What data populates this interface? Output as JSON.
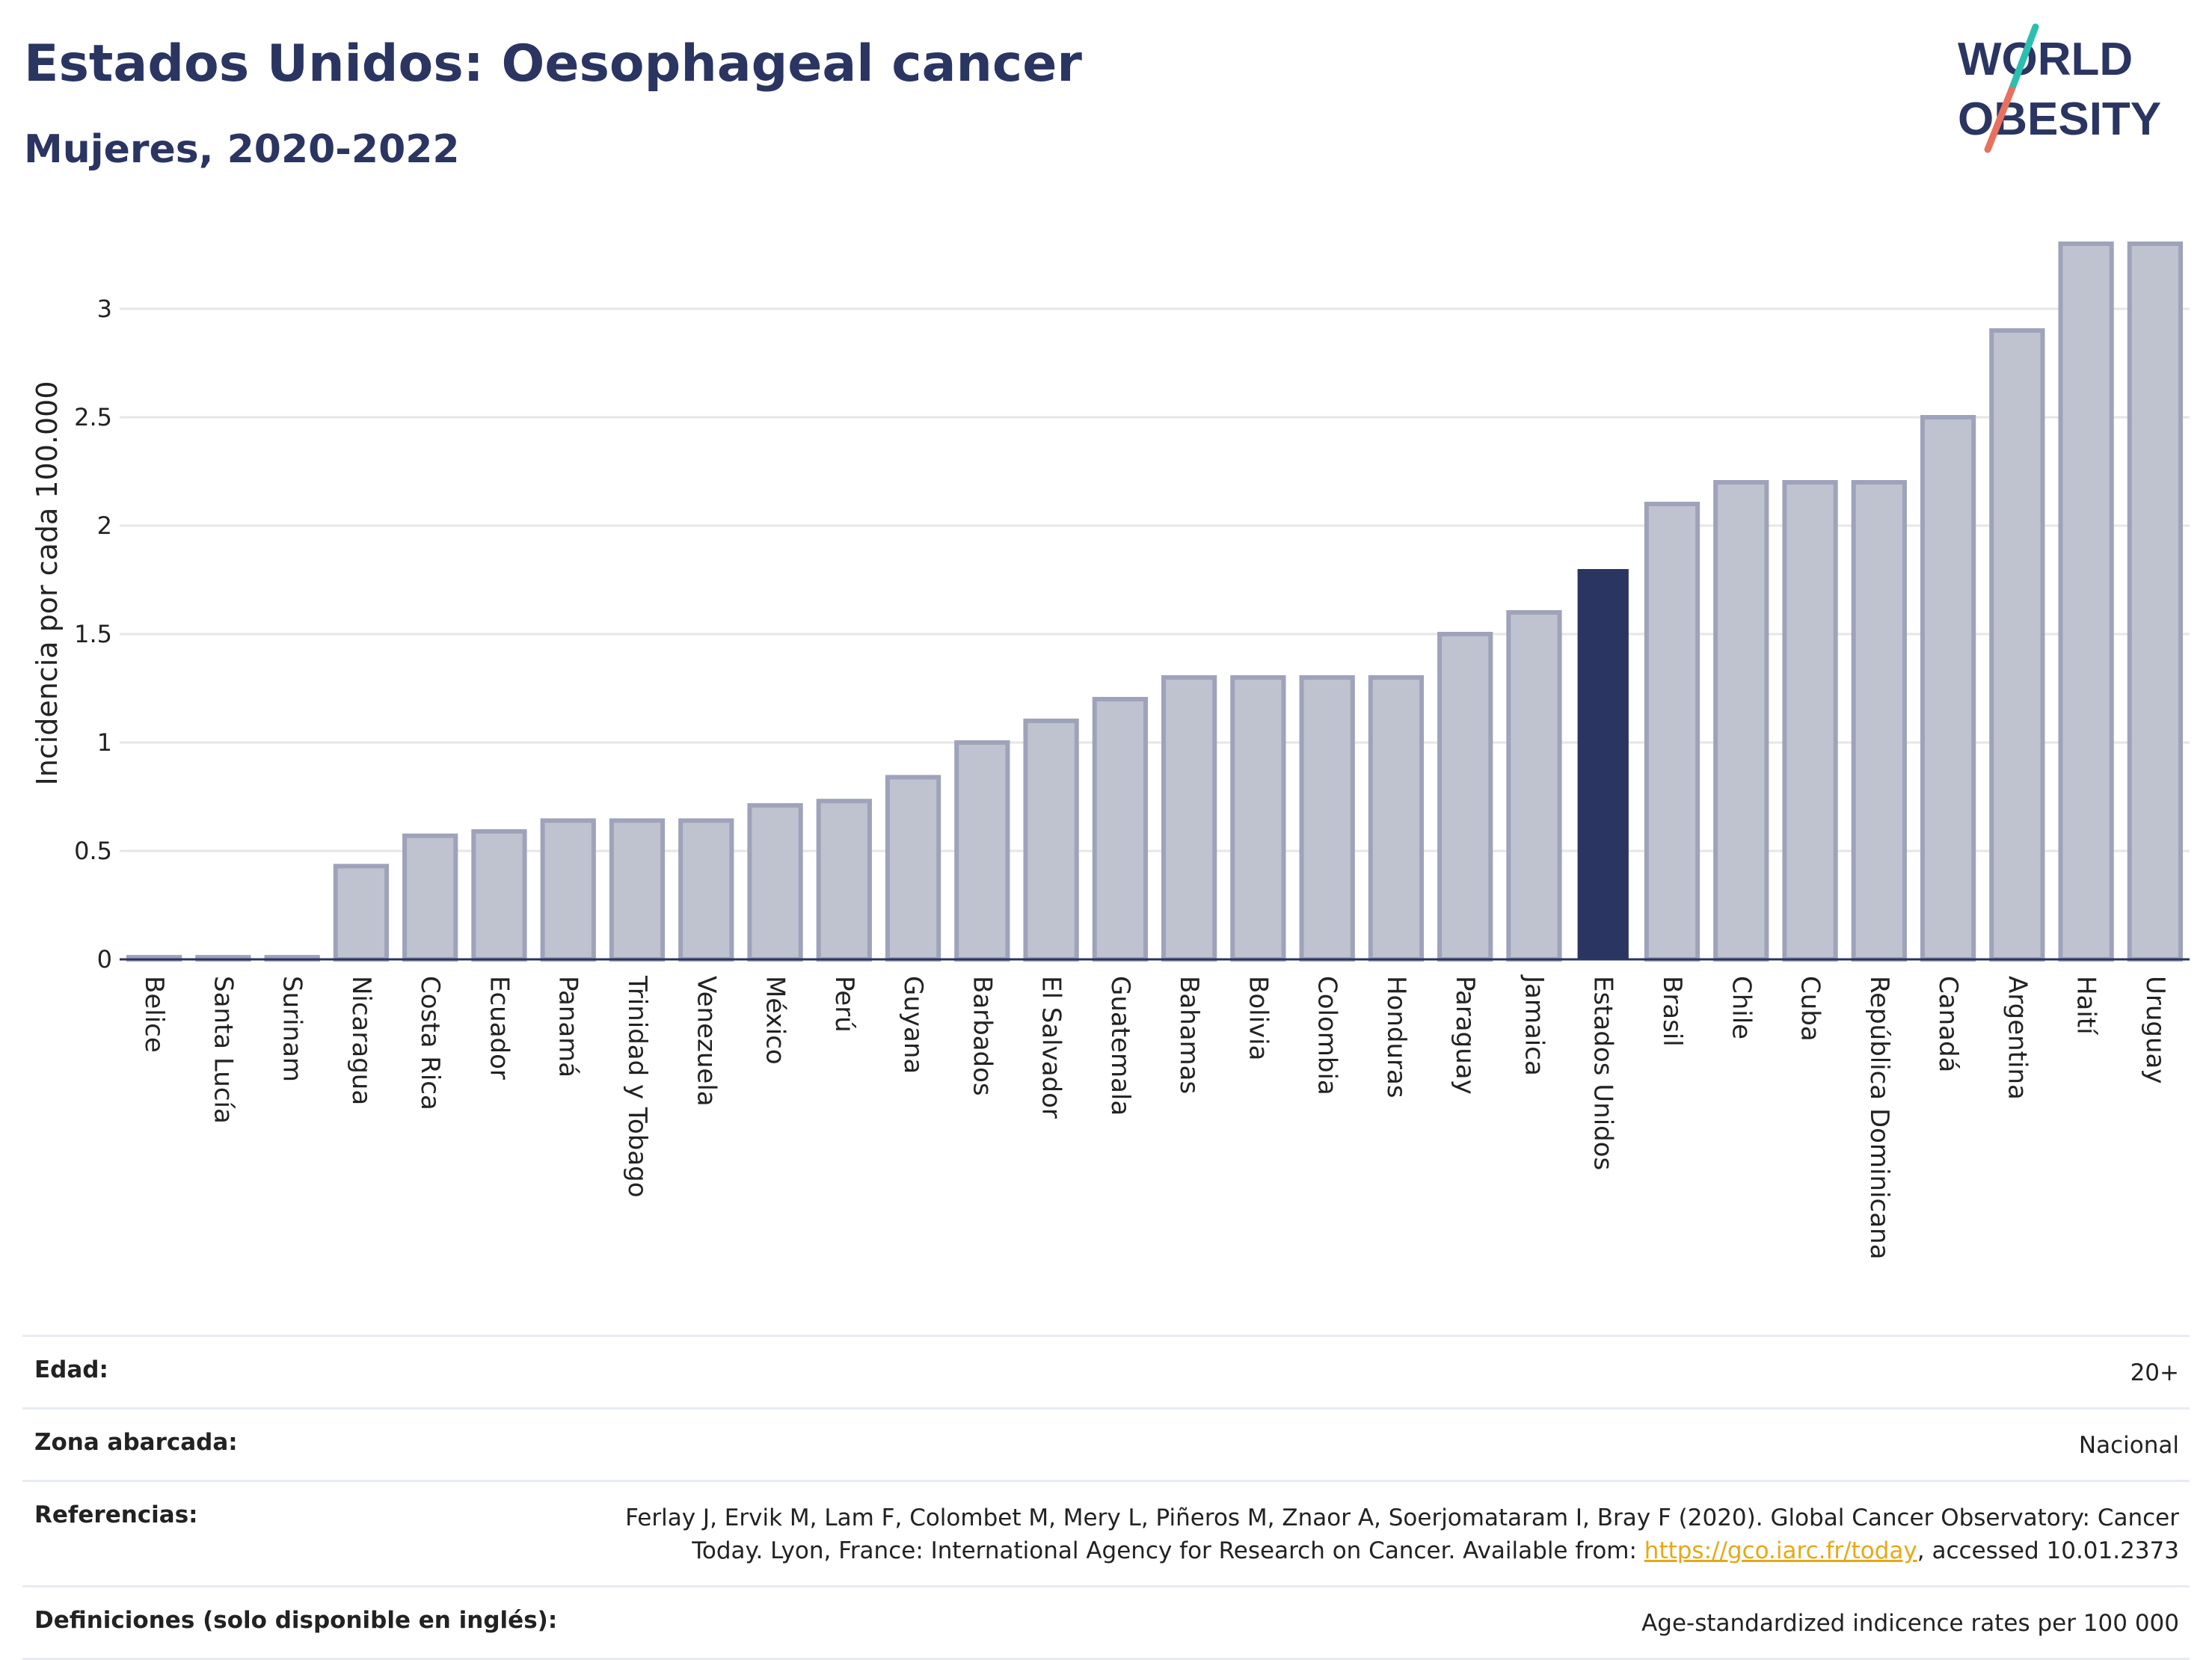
{
  "header": {
    "title": "Estados Unidos: Oesophageal cancer",
    "subtitle": "Mujeres, 2020-2022"
  },
  "logo": {
    "line1": "WORLD",
    "line2": "OBESITY"
  },
  "colors": {
    "highlight_bar": "#2a3561",
    "other_bar_fill": "#bfc2cf",
    "other_bar_stroke": "#9ea3ba",
    "grid": "#e6e6e6",
    "logo_slash_top": "#2bbfae",
    "logo_slash_bottom": "#e8705e"
  },
  "chart_data": {
    "type": "bar",
    "title": "Estados Unidos: Oesophageal cancer",
    "subtitle": "Mujeres, 2020-2022",
    "xlabel": "",
    "ylabel": "Incidencia por cada 100.000",
    "ylim": [
      0,
      3.3
    ],
    "yticks": [
      0,
      0.5,
      1,
      1.5,
      2,
      2.5,
      3
    ],
    "grid": true,
    "highlight": "Estados Unidos",
    "categories": [
      "Belice",
      "Santa Lucía",
      "Surinam",
      "Nicaragua",
      "Costa Rica",
      "Ecuador",
      "Panamá",
      "Trinidad y Tobago",
      "Venezuela",
      "México",
      "Perú",
      "Guyana",
      "Barbados",
      "El Salvador",
      "Guatemala",
      "Bahamas",
      "Bolivia",
      "Colombia",
      "Honduras",
      "Paraguay",
      "Jamaica",
      "Estados Unidos",
      "Brasil",
      "Chile",
      "Cuba",
      "República Dominicana",
      "Canadá",
      "Argentina",
      "Haití",
      "Uruguay"
    ],
    "values": [
      0.01,
      0.01,
      0.01,
      0.43,
      0.57,
      0.59,
      0.64,
      0.64,
      0.64,
      0.71,
      0.73,
      0.84,
      1.0,
      1.1,
      1.2,
      1.3,
      1.3,
      1.3,
      1.3,
      1.5,
      1.6,
      1.8,
      2.1,
      2.2,
      2.2,
      2.2,
      2.5,
      2.9,
      3.3,
      3.3
    ]
  },
  "info": {
    "rows": [
      {
        "label": "Edad:",
        "value": "20+"
      },
      {
        "label": "Zona abarcada:",
        "value": "Nacional"
      },
      {
        "label": "Referencias:",
        "value_line1": "Ferlay J, Ervik M, Lam F, Colombet M, Mery L, Piñeros M, Znaor A, Soerjomataram I, Bray F (2020). Global Cancer Observatory: Cancer",
        "value_line2_pre": "Today. Lyon, France: International Agency for Research on Cancer. Available from: ",
        "link": "https://gco.iarc.fr/today",
        "value_line2_post": ", accessed 10.01.2373"
      },
      {
        "label": "Definiciones (solo disponible en inglés):",
        "value": "Age-standardized indicence rates per 100 000"
      }
    ]
  }
}
